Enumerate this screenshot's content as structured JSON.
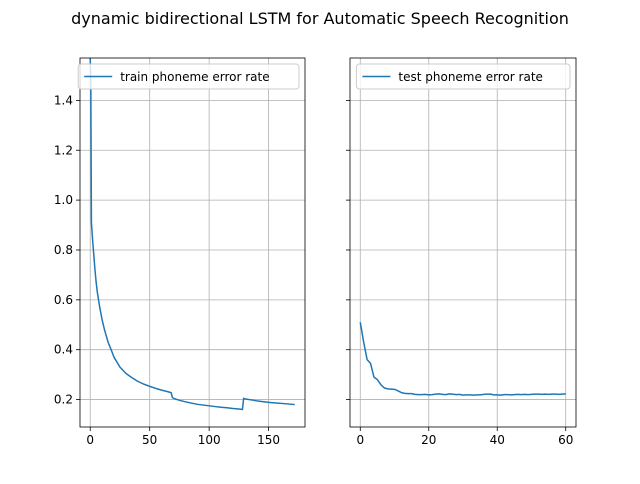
{
  "colors": {
    "series": "#1f77b4"
  },
  "figure_title": "dynamic bidirectional LSTM for Automatic Speech Recognition",
  "chart_data": [
    {
      "type": "line",
      "title": "",
      "xlabel": "",
      "ylabel": "",
      "grid": true,
      "legend_position": "top-right",
      "xlim": [
        -8.6,
        180.6
      ],
      "ylim": [
        0.09,
        1.57
      ],
      "xticks": [
        0,
        50,
        100,
        150
      ],
      "yticks": [
        0.2,
        0.4,
        0.6,
        0.8,
        1.0,
        1.2,
        1.4
      ],
      "ytick_labels": [
        "0.2",
        "0.4",
        "0.6",
        "0.8",
        "1.0",
        "1.2",
        "1.4"
      ],
      "series": [
        {
          "name": "train phoneme error rate",
          "x": [
            0,
            0.5,
            1,
            2,
            3,
            4,
            5,
            6,
            8,
            10,
            12,
            15,
            18,
            20,
            25,
            30,
            35,
            40,
            45,
            50,
            55,
            60,
            65,
            68,
            69,
            70,
            75,
            80,
            85,
            90,
            95,
            100,
            105,
            110,
            115,
            120,
            125,
            128,
            129,
            130,
            135,
            140,
            145,
            150,
            155,
            160,
            165,
            172
          ],
          "y": [
            1.57,
            1.45,
            0.91,
            0.84,
            0.78,
            0.72,
            0.67,
            0.63,
            0.57,
            0.52,
            0.48,
            0.43,
            0.395,
            0.37,
            0.33,
            0.305,
            0.288,
            0.273,
            0.262,
            0.253,
            0.245,
            0.238,
            0.232,
            0.228,
            0.21,
            0.205,
            0.197,
            0.191,
            0.186,
            0.181,
            0.178,
            0.175,
            0.172,
            0.169,
            0.167,
            0.164,
            0.162,
            0.16,
            0.205,
            0.203,
            0.199,
            0.195,
            0.192,
            0.189,
            0.187,
            0.185,
            0.183,
            0.18
          ]
        }
      ]
    },
    {
      "type": "line",
      "title": "",
      "xlabel": "",
      "ylabel": "",
      "grid": true,
      "legend_position": "top-right",
      "xlim": [
        -3,
        63
      ],
      "ylim": [
        0.09,
        1.57
      ],
      "xticks": [
        0,
        20,
        40,
        60
      ],
      "yticks": [
        0.2,
        0.4,
        0.6,
        0.8,
        1.0,
        1.2,
        1.4
      ],
      "ytick_labels": [],
      "series": [
        {
          "name": "test phoneme error rate",
          "x": [
            0,
            1,
            2,
            3,
            4,
            5,
            6,
            7,
            8,
            9,
            10,
            11,
            12,
            13,
            14,
            15,
            16,
            17,
            18,
            19,
            20,
            21,
            22,
            23,
            24,
            25,
            26,
            27,
            28,
            29,
            30,
            31,
            32,
            33,
            34,
            35,
            36,
            37,
            38,
            39,
            40,
            41,
            42,
            43,
            44,
            45,
            46,
            47,
            48,
            49,
            50,
            51,
            52,
            53,
            54,
            55,
            56,
            57,
            58,
            59,
            60
          ],
          "y": [
            0.51,
            0.43,
            0.36,
            0.345,
            0.29,
            0.28,
            0.26,
            0.247,
            0.243,
            0.242,
            0.241,
            0.235,
            0.228,
            0.225,
            0.224,
            0.224,
            0.221,
            0.22,
            0.22,
            0.221,
            0.219,
            0.22,
            0.222,
            0.223,
            0.221,
            0.22,
            0.223,
            0.222,
            0.22,
            0.221,
            0.218,
            0.219,
            0.219,
            0.218,
            0.219,
            0.219,
            0.221,
            0.222,
            0.222,
            0.219,
            0.219,
            0.218,
            0.22,
            0.22,
            0.219,
            0.22,
            0.221,
            0.22,
            0.221,
            0.22,
            0.221,
            0.222,
            0.222,
            0.221,
            0.222,
            0.221,
            0.222,
            0.222,
            0.221,
            0.222,
            0.223
          ]
        }
      ]
    }
  ]
}
